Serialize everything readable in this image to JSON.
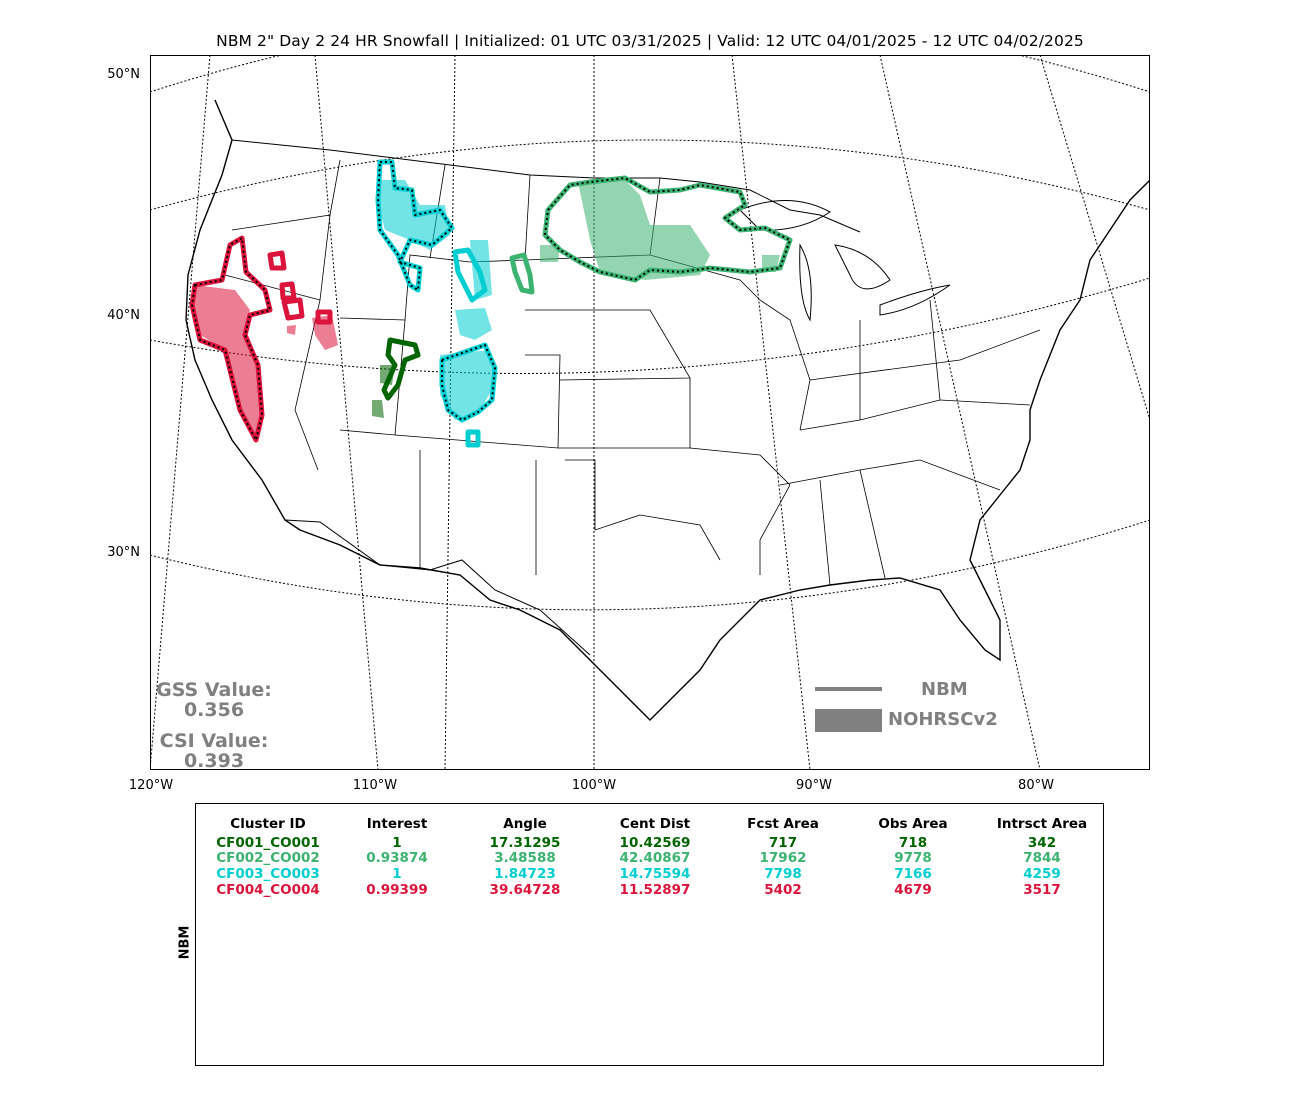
{
  "title": "NBM 2\" Day 2 24 HR Snowfall | Initialized: 01 UTC 03/31/2025 | Valid: 12 UTC 04/01/2025 - 12 UTC 04/02/2025",
  "lat_labels": [
    "50°N",
    "40°N",
    "30°N"
  ],
  "lon_labels": [
    "120°W",
    "110°W",
    "100°W",
    "90°W",
    "80°W"
  ],
  "scores": {
    "gss_label": "GSS Value:",
    "gss_value": "0.356",
    "csi_label": "CSI Value:",
    "csi_value": "0.393"
  },
  "legend": {
    "forecast_label": "NBM",
    "observed_label": "NOHRSCv2"
  },
  "colors": {
    "cluster1": "#006400",
    "cluster2": "#3cb371",
    "cluster3": "#00ced1",
    "cluster4": "#dc143c",
    "legend_gray": "#808080"
  },
  "table": {
    "side_label": "NBM",
    "headers": [
      "Cluster ID",
      "Interest",
      "Angle",
      "Cent Dist",
      "Fcst Area",
      "Obs Area",
      "Intrsct Area"
    ],
    "rows": [
      {
        "cells": [
          "CF001_CO001",
          "1",
          "17.31295",
          "10.42569",
          "717",
          "718",
          "342"
        ],
        "color": "#006400"
      },
      {
        "cells": [
          "CF002_CO002",
          "0.93874",
          "3.48588",
          "42.40867",
          "17962",
          "9778",
          "7844"
        ],
        "color": "#3cb371"
      },
      {
        "cells": [
          "CF003_CO003",
          "1",
          "1.84723",
          "14.75594",
          "7798",
          "7166",
          "4259"
        ],
        "color": "#00ced1"
      },
      {
        "cells": [
          "CF004_CO004",
          "0.99399",
          "39.64728",
          "11.52897",
          "5402",
          "4679",
          "3517"
        ],
        "color": "#dc143c"
      }
    ]
  }
}
